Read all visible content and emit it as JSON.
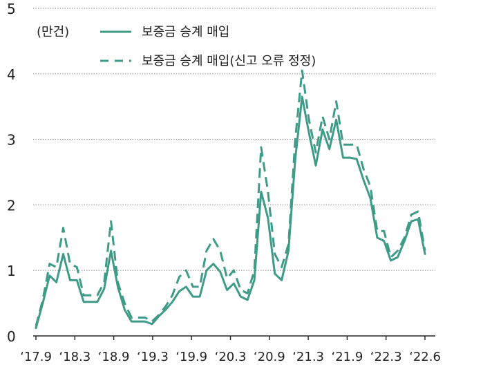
{
  "chart_data": {
    "type": "line",
    "unit_label": "(만건)",
    "ylim": [
      0,
      5
    ],
    "y_ticks": [
      0,
      1,
      2,
      3,
      4,
      5
    ],
    "x_tick_labels": [
      "‘17.9",
      "‘18.3",
      "‘18.9",
      "‘19.3",
      "‘19.9",
      "‘20.3",
      "‘20.9",
      "‘21.3",
      "‘21.9",
      "‘22.3",
      "‘22.6"
    ],
    "x": [
      "2017-09",
      "2017-10",
      "2017-11",
      "2017-12",
      "2018-01",
      "2018-02",
      "2018-03",
      "2018-04",
      "2018-05",
      "2018-06",
      "2018-07",
      "2018-08",
      "2018-09",
      "2018-10",
      "2018-11",
      "2018-12",
      "2019-01",
      "2019-02",
      "2019-03",
      "2019-04",
      "2019-05",
      "2019-06",
      "2019-07",
      "2019-08",
      "2019-09",
      "2019-10",
      "2019-11",
      "2019-12",
      "2020-01",
      "2020-02",
      "2020-03",
      "2020-04",
      "2020-05",
      "2020-06",
      "2020-07",
      "2020-08",
      "2020-09",
      "2020-10",
      "2020-11",
      "2020-12",
      "2021-01",
      "2021-02",
      "2021-03",
      "2021-04",
      "2021-05",
      "2021-06",
      "2021-07",
      "2021-08",
      "2021-09",
      "2021-10",
      "2021-11",
      "2021-12",
      "2022-01",
      "2022-02",
      "2022-03",
      "2022-04",
      "2022-05",
      "2022-06"
    ],
    "series": [
      {
        "name": "보증금 승계 매입",
        "style": "solid",
        "color": "#3e9b88",
        "values": [
          0.12,
          0.5,
          0.92,
          0.82,
          1.25,
          0.85,
          0.85,
          0.52,
          0.52,
          0.52,
          0.72,
          1.3,
          0.75,
          0.4,
          0.22,
          0.22,
          0.22,
          0.18,
          0.3,
          0.4,
          0.52,
          0.68,
          0.75,
          0.6,
          0.6,
          1.0,
          1.1,
          0.98,
          0.7,
          0.8,
          0.6,
          0.55,
          0.85,
          2.2,
          1.8,
          0.95,
          0.85,
          1.3,
          2.7,
          3.65,
          3.1,
          2.6,
          3.15,
          2.85,
          3.3,
          2.72,
          2.72,
          2.7,
          2.38,
          2.1,
          1.5,
          1.45,
          1.15,
          1.2,
          1.45,
          1.75,
          1.78,
          1.25
        ]
      },
      {
        "name": "보증금 승계 매입(신고 오류 정정)",
        "style": "dashed",
        "color": "#3e9b88",
        "values": [
          0.15,
          0.55,
          1.1,
          1.05,
          1.65,
          1.1,
          1.05,
          0.62,
          0.62,
          0.62,
          0.82,
          1.75,
          0.82,
          0.5,
          0.28,
          0.28,
          0.28,
          0.22,
          0.32,
          0.45,
          0.62,
          0.9,
          1.0,
          0.75,
          0.75,
          1.3,
          1.48,
          1.3,
          0.88,
          1.0,
          0.7,
          0.65,
          1.0,
          2.88,
          2.2,
          1.25,
          1.05,
          1.4,
          3.0,
          4.05,
          3.3,
          2.8,
          3.35,
          3.0,
          3.58,
          2.92,
          2.92,
          2.92,
          2.55,
          2.28,
          1.6,
          1.6,
          1.2,
          1.3,
          1.5,
          1.85,
          1.9,
          1.3
        ]
      }
    ],
    "legend_placement": "top-left",
    "grid": "horizontal dotted"
  }
}
